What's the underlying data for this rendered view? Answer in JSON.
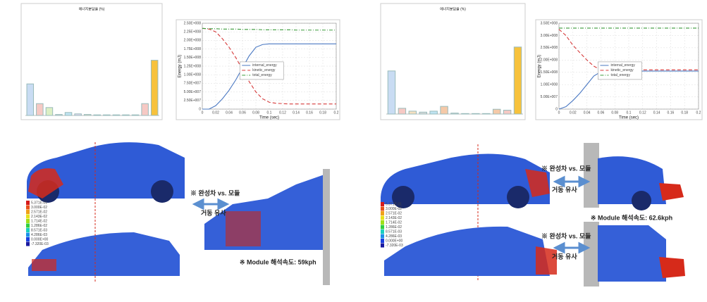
{
  "chart_data": [
    {
      "type": "bar",
      "title": "에너지분담율 (%)",
      "categories": [
        null,
        null,
        null,
        null,
        null,
        null,
        null,
        null,
        null,
        null,
        null,
        null,
        null,
        null
      ],
      "values": [
        16,
        6,
        4,
        0.5,
        1.5,
        0.8,
        0.5,
        0.3,
        0.3,
        0.3,
        0.3,
        0.3,
        6,
        28
      ],
      "colors": [
        "#c9dcf3",
        "#f6c9c4",
        "#dcefc4",
        "#d9d9d9",
        "#bfe3f2",
        "#e3d7f0",
        "#f5e0c0",
        "#d9d9d9",
        "#d9d9d9",
        "#d9d9d9",
        "#d9d9d9",
        "#d9d9d9",
        "#f6c9c4",
        "#f7c23c"
      ],
      "ylim": [
        0,
        30
      ]
    },
    {
      "type": "line",
      "x_label": "Time (sec)",
      "y_label": "Energy (mJ)",
      "x": [
        0,
        0.01,
        0.02,
        0.03,
        0.04,
        0.05,
        0.06,
        0.07,
        0.08,
        0.09,
        0.1,
        0.11,
        0.12,
        0.13,
        0.14,
        0.15,
        0.16,
        0.17,
        0.18,
        0.19,
        0.2
      ],
      "series": [
        {
          "name": "internal_energy",
          "color": "#4a78c2",
          "style": "solid",
          "values": [
            0,
            0,
            10000000.0,
            30000000.0,
            55000000.0,
            85000000.0,
            120000000.0,
            155000000.0,
            180000000.0,
            188000000.0,
            190000000.0,
            190000000.0,
            190000000.0,
            190000000.0,
            190000000.0,
            190000000.0,
            190000000.0,
            190000000.0,
            190000000.0,
            190000000.0,
            190000000.0
          ]
        },
        {
          "name": "kinetic_energy",
          "color": "#d63a3a",
          "style": "dash",
          "values": [
            235000000.0,
            233000000.0,
            225000000.0,
            205000000.0,
            180000000.0,
            150000000.0,
            115000000.0,
            80000000.0,
            50000000.0,
            30000000.0,
            20000000.0,
            17000000.0,
            16000000.0,
            15000000.0,
            15000000.0,
            15000000.0,
            15000000.0,
            15000000.0,
            15000000.0,
            15000000.0,
            15000000.0
          ]
        },
        {
          "name": "total_energy",
          "color": "#3a9a3a",
          "style": "dashdot",
          "values": [
            235000000.0,
            234000000.0,
            234000000.0,
            233000000.0,
            233000000.0,
            233000000.0,
            232000000.0,
            232000000.0,
            232000000.0,
            231000000.0,
            231000000.0,
            231000000.0,
            231000000.0,
            231000000.0,
            230000000.0,
            230000000.0,
            230000000.0,
            230000000.0,
            230000000.0,
            230000000.0,
            230000000.0
          ]
        }
      ],
      "xlim": [
        0,
        0.2
      ],
      "xticks": [
        0,
        0.02,
        0.04,
        0.06,
        0.08,
        0.1,
        0.12,
        0.14,
        0.16,
        0.18,
        0.2
      ],
      "ylim": [
        0,
        250000000.0
      ],
      "yticks": [
        0,
        {
          "value": 25000000.0,
          "label": "2.50E+007"
        },
        {
          "value": 50000000.0,
          "label": "5.00E+007"
        },
        {
          "value": 75000000.0,
          "label": "7.50E+007"
        },
        {
          "value": 100000000.0,
          "label": "1.00E+008"
        },
        {
          "value": 125000000.0,
          "label": "1.25E+008"
        },
        {
          "value": 150000000.0,
          "label": "1.50E+008"
        },
        {
          "value": 175000000.0,
          "label": "1.75E+008"
        },
        {
          "value": 200000000.0,
          "label": "2.00E+008"
        },
        {
          "value": 225000000.0,
          "label": "2.25E+008"
        },
        {
          "value": 250000000.0,
          "label": "2.50E+008"
        }
      ],
      "grid": true
    },
    {
      "type": "bar",
      "title": "에너지분담율 (%)",
      "categories": [
        null,
        null,
        null,
        null,
        null,
        null,
        null,
        null,
        null,
        null,
        null,
        null,
        null
      ],
      "values": [
        45,
        6,
        3,
        2,
        3,
        8,
        1,
        0.5,
        0.5,
        0.5,
        5,
        4,
        70
      ],
      "colors": [
        "#c9dcf3",
        "#f6c9c4",
        "#f5e0c0",
        "#d9d9d9",
        "#bfe3f2",
        "#f5c9a8",
        "#d9d9d9",
        "#d9d9d9",
        "#d9d9d9",
        "#d9d9d9",
        "#f5c9a8",
        "#f6c9c4",
        "#f7c23c"
      ],
      "ylim": [
        0,
        75
      ]
    },
    {
      "type": "line",
      "x_label": "Time (sec)",
      "y_label": "Energy (mJ)",
      "x": [
        0,
        0.01,
        0.02,
        0.03,
        0.04,
        0.05,
        0.06,
        0.07,
        0.08,
        0.09,
        0.1,
        0.11,
        0.12,
        0.13,
        0.14,
        0.15,
        0.16,
        0.17,
        0.18,
        0.19,
        0.2
      ],
      "series": [
        {
          "name": "internal_energy",
          "color": "#4a78c2",
          "style": "solid",
          "values": [
            0,
            10000000.0,
            35000000.0,
            65000000.0,
            100000000.0,
            135000000.0,
            152000000.0,
            155000000.0,
            155000000.0,
            155000000.0,
            155000000.0,
            155000000.0,
            155000000.0,
            155000000.0,
            155000000.0,
            155000000.0,
            155000000.0,
            155000000.0,
            155000000.0,
            155000000.0,
            155000000.0
          ]
        },
        {
          "name": "kinetic_energy",
          "color": "#d63a3a",
          "style": "dash",
          "values": [
            325000000.0,
            300000000.0,
            260000000.0,
            230000000.0,
            200000000.0,
            175000000.0,
            160000000.0,
            158000000.0,
            160000000.0,
            160000000.0,
            160000000.0,
            160000000.0,
            160000000.0,
            160000000.0,
            160000000.0,
            160000000.0,
            160000000.0,
            160000000.0,
            160000000.0,
            160000000.0,
            160000000.0
          ]
        },
        {
          "name": "total_energy",
          "color": "#3a9a3a",
          "style": "dashdot",
          "values": [
            330000000.0,
            330000000.0,
            330000000.0,
            330000000.0,
            330000000.0,
            330000000.0,
            330000000.0,
            330000000.0,
            330000000.0,
            330000000.0,
            330000000.0,
            330000000.0,
            330000000.0,
            330000000.0,
            330000000.0,
            330000000.0,
            330000000.0,
            330000000.0,
            330000000.0,
            330000000.0,
            330000000.0
          ]
        }
      ],
      "xlim": [
        0,
        0.2
      ],
      "xticks": [
        0,
        0.02,
        0.04,
        0.06,
        0.08,
        0.1,
        0.12,
        0.14,
        0.16,
        0.18,
        0.2
      ],
      "ylim": [
        0,
        350000000.0
      ],
      "yticks": [
        0,
        {
          "value": 50000000.0,
          "label": "5.00E+007"
        },
        {
          "value": 100000000.0,
          "label": "1.00E+008"
        },
        {
          "value": 150000000.0,
          "label": "1.50E+008"
        },
        {
          "value": 200000000.0,
          "label": "2.00E+008"
        },
        {
          "value": 250000000.0,
          "label": "2.50E+008"
        },
        {
          "value": 300000000.0,
          "label": "3.00E+008"
        },
        {
          "value": 350000000.0,
          "label": "3.50E+008"
        }
      ],
      "grid": true
    }
  ],
  "contour_legends": [
    {
      "labels": [
        "5.371E-01",
        "3.000E-02",
        "2.571E-02",
        "2.143E-02",
        "1.714E-02",
        "1.286E-02",
        "8.571E-03",
        "4.286E-03",
        "0.000E+00",
        "-7.320E-03"
      ]
    },
    {
      "labels": [
        "5.371E-01",
        "3.000E-02",
        "2.571E-02",
        "2.143E-02",
        "1.714E-02",
        "1.286E-02",
        "8.571E-03",
        "4.286E-03",
        "0.000E+00",
        "-7.320E-03"
      ]
    }
  ],
  "annotations": {
    "left_compare": "※ 완성차 vs. 모듈",
    "left_similar": "거동 유사",
    "left_speed": "※ Module 해석속도: 59kph",
    "right_compare_top": "※ 완성차 vs. 모듈",
    "right_similar_top": "거동 유사",
    "right_speed": "※ Module 해석속도: 62.6kph",
    "right_compare_bottom": "※ 완성차 vs. 모듈",
    "right_similar_bottom": "거동 유사"
  }
}
